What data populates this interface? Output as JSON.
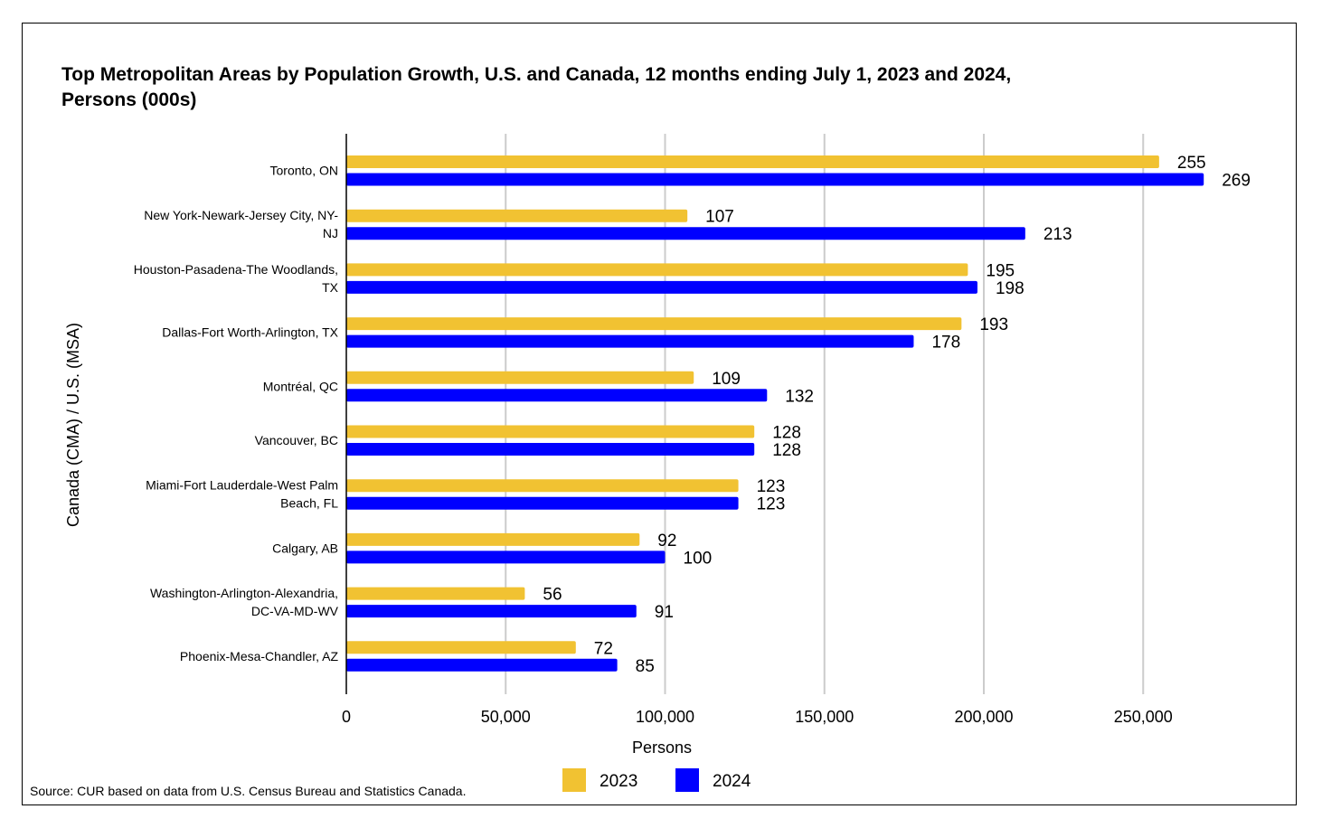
{
  "chart_data": {
    "type": "bar",
    "orientation": "horizontal",
    "title": "Top Metropolitan Areas by Population Growth, U.S. and Canada, 12 months ending July 1, 2023 and 2024, Persons (000s)",
    "title_lines": [
      "Top Metropolitan Areas by Population Growth, U.S. and Canada, 12 months ending July 1, 2023 and 2024,",
      "Persons (000s)"
    ],
    "xlabel": "Persons",
    "ylabel": "Canada (CMA) / U.S. (MSA)",
    "xlim": [
      0,
      275000
    ],
    "x_ticks": [
      0,
      50000,
      100000,
      150000,
      200000,
      250000
    ],
    "x_tick_labels": [
      "0",
      "50,000",
      "100,000",
      "150,000",
      "200,000",
      "250,000"
    ],
    "grid": true,
    "legend_position": "bottom",
    "categories": [
      [
        "Toronto, ON"
      ],
      [
        "New York-Newark-Jersey City, NY-",
        "NJ"
      ],
      [
        "Houston-Pasadena-The Woodlands,",
        "TX"
      ],
      [
        "Dallas-Fort Worth-Arlington, TX"
      ],
      [
        "Montréal, QC"
      ],
      [
        "Vancouver, BC"
      ],
      [
        "Miami-Fort Lauderdale-West Palm",
        "Beach, FL"
      ],
      [
        "Calgary, AB"
      ],
      [
        "Washington-Arlington-Alexandria,",
        "DC-VA-MD-WV"
      ],
      [
        "Phoenix-Mesa-Chandler, AZ"
      ]
    ],
    "series": [
      {
        "name": "2023",
        "color": "#f1c232",
        "values": [
          255000,
          107000,
          195000,
          193000,
          109000,
          128000,
          123000,
          92000,
          56000,
          72000
        ],
        "labels": [
          "255",
          "107",
          "195",
          "193",
          "109",
          "128",
          "123",
          "92",
          "56",
          "72"
        ]
      },
      {
        "name": "2024",
        "color": "#0000ff",
        "values": [
          269000,
          213000,
          198000,
          178000,
          132000,
          128000,
          123000,
          100000,
          91000,
          85000
        ],
        "labels": [
          "269",
          "213",
          "198",
          "178",
          "132",
          "128",
          "123",
          "100",
          "91",
          "85"
        ]
      }
    ]
  },
  "source_note": "Source: CUR based on data from U.S. Census Bureau and Statistics Canada."
}
